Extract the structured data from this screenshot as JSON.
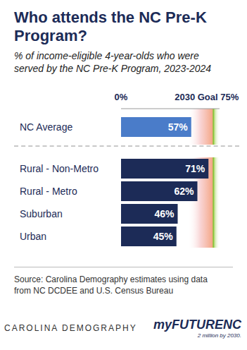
{
  "chart_data": {
    "type": "bar",
    "orientation": "horizontal",
    "title": "Who attends the NC Pre-K Program?",
    "subtitle": "% of income-eligible 4-year-olds who were served by the NC Pre-K Program, 2023-2024",
    "categories": [
      "NC Average",
      "Rural - Non-Metro",
      "Rural - Metro",
      "Suburban",
      "Urban"
    ],
    "values": [
      57,
      71,
      62,
      46,
      45
    ],
    "value_labels": [
      "57%",
      "71%",
      "62%",
      "46%",
      "45%"
    ],
    "colors": [
      "#4a7cc9",
      "#1c2b57",
      "#1c2b57",
      "#1c2b57",
      "#1c2b57"
    ],
    "xlim": [
      0,
      80
    ],
    "xticks": [
      {
        "value": 0,
        "label": "0%"
      },
      {
        "value": 75,
        "label": "2030 Goal 75%"
      }
    ],
    "data_labels": true,
    "grid": false,
    "source": "Source: Carolina Demography estimates using data from NC DCDEE and U.S. Census Bureau",
    "annotations": [
      "CAROLINA DEMOGRAPHY",
      "myFUTURENC",
      "2 million by 2030."
    ]
  }
}
